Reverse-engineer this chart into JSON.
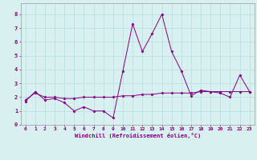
{
  "xlabel": "Windchill (Refroidissement éolien,°C)",
  "x_values": [
    0,
    1,
    2,
    3,
    4,
    5,
    6,
    7,
    8,
    9,
    10,
    11,
    12,
    13,
    14,
    15,
    16,
    17,
    18,
    19,
    20,
    21,
    22,
    23
  ],
  "line1_y": [
    1.7,
    2.4,
    1.8,
    1.9,
    1.6,
    1.0,
    1.3,
    1.0,
    1.0,
    0.5,
    3.9,
    7.3,
    5.3,
    6.6,
    8.0,
    5.3,
    3.9,
    2.1,
    2.5,
    2.4,
    2.3,
    2.0,
    3.6,
    2.4
  ],
  "line2_y": [
    1.8,
    2.3,
    2.0,
    2.0,
    1.9,
    1.9,
    2.0,
    2.0,
    2.0,
    2.0,
    2.1,
    2.1,
    2.2,
    2.2,
    2.3,
    2.3,
    2.3,
    2.3,
    2.4,
    2.4,
    2.4,
    2.4,
    2.4,
    2.4
  ],
  "line_color": "#800080",
  "bg_color": "#d8f0f0",
  "grid_color": "#b8dede",
  "ylim": [
    0,
    8.8
  ],
  "xlim": [
    -0.5,
    23.5
  ],
  "yticks": [
    0,
    1,
    2,
    3,
    4,
    5,
    6,
    7,
    8
  ],
  "xticks": [
    0,
    1,
    2,
    3,
    4,
    5,
    6,
    7,
    8,
    9,
    10,
    11,
    12,
    13,
    14,
    15,
    16,
    17,
    18,
    19,
    20,
    21,
    22,
    23
  ]
}
